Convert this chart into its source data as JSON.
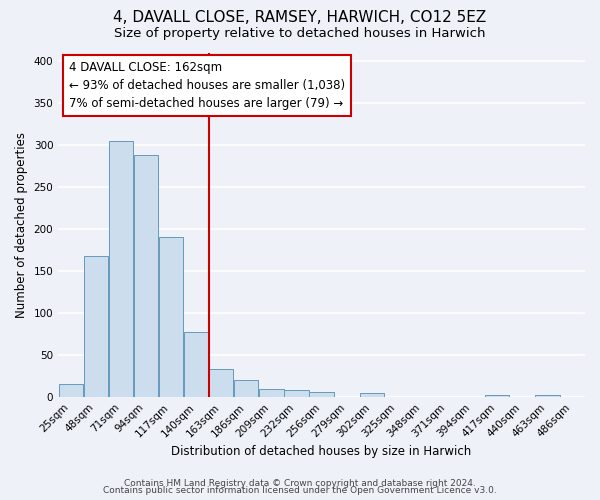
{
  "title": "4, DAVALL CLOSE, RAMSEY, HARWICH, CO12 5EZ",
  "subtitle": "Size of property relative to detached houses in Harwich",
  "xlabel": "Distribution of detached houses by size in Harwich",
  "ylabel": "Number of detached properties",
  "categories": [
    "25sqm",
    "48sqm",
    "71sqm",
    "94sqm",
    "117sqm",
    "140sqm",
    "163sqm",
    "186sqm",
    "209sqm",
    "232sqm",
    "256sqm",
    "279sqm",
    "302sqm",
    "325sqm",
    "348sqm",
    "371sqm",
    "394sqm",
    "417sqm",
    "440sqm",
    "463sqm",
    "486sqm"
  ],
  "bar_values": [
    16,
    168,
    305,
    288,
    191,
    78,
    33,
    20,
    10,
    9,
    6,
    0,
    5,
    0,
    0,
    0,
    0,
    3,
    0,
    3,
    0
  ],
  "bar_color": "#ccdded",
  "bar_edge_color": "#6699bb",
  "background_color": "#eef2f8",
  "grid_color": "#ffffff",
  "ylim": [
    0,
    410
  ],
  "yticks": [
    0,
    50,
    100,
    150,
    200,
    250,
    300,
    350,
    400
  ],
  "property_line_color": "#cc0000",
  "annotation_text": "4 DAVALL CLOSE: 162sqm\n← 93% of detached houses are smaller (1,038)\n7% of semi-detached houses are larger (79) →",
  "annotation_box_color": "#ffffff",
  "annotation_box_edge_color": "#cc0000",
  "footer_line1": "Contains HM Land Registry data © Crown copyright and database right 2024.",
  "footer_line2": "Contains public sector information licensed under the Open Government Licence v3.0.",
  "title_fontsize": 11,
  "subtitle_fontsize": 9.5,
  "axis_label_fontsize": 8.5,
  "tick_fontsize": 7.5,
  "annotation_fontsize": 8.5,
  "footer_fontsize": 6.5
}
